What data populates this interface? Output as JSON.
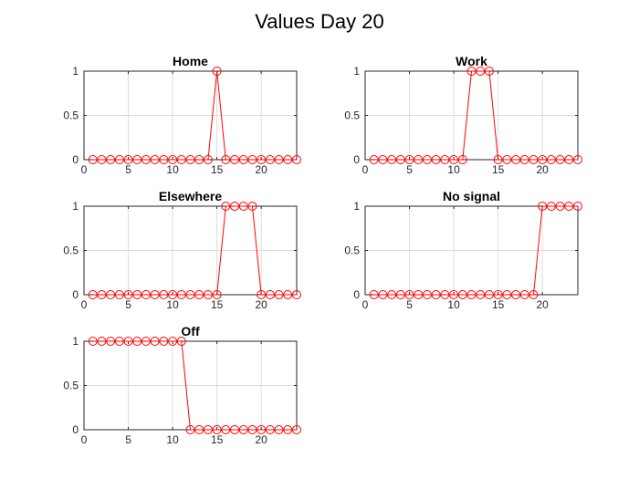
{
  "figure_title": "Values Day 20",
  "chart_data": [
    {
      "type": "line",
      "title": "Home",
      "xlabel": "",
      "ylabel": "",
      "xlim": [
        0,
        24
      ],
      "ylim": [
        0,
        1
      ],
      "xticks": [
        0,
        5,
        10,
        15,
        20
      ],
      "yticks": [
        0,
        0.5,
        1
      ],
      "grid": true,
      "marker": "circle-open",
      "color": "#ff0000",
      "x": [
        1,
        2,
        3,
        4,
        5,
        6,
        7,
        8,
        9,
        10,
        11,
        12,
        13,
        14,
        15,
        16,
        17,
        18,
        19,
        20,
        21,
        22,
        23,
        24
      ],
      "values": [
        0,
        0,
        0,
        0,
        0,
        0,
        0,
        0,
        0,
        0,
        0,
        0,
        0,
        0,
        1,
        0,
        0,
        0,
        0,
        0,
        0,
        0,
        0,
        0
      ]
    },
    {
      "type": "line",
      "title": "Work",
      "xlabel": "",
      "ylabel": "",
      "xlim": [
        0,
        24
      ],
      "ylim": [
        0,
        1
      ],
      "xticks": [
        0,
        5,
        10,
        15,
        20
      ],
      "yticks": [
        0,
        0.5,
        1
      ],
      "grid": true,
      "marker": "circle-open",
      "color": "#ff0000",
      "x": [
        1,
        2,
        3,
        4,
        5,
        6,
        7,
        8,
        9,
        10,
        11,
        12,
        13,
        14,
        15,
        16,
        17,
        18,
        19,
        20,
        21,
        22,
        23,
        24
      ],
      "values": [
        0,
        0,
        0,
        0,
        0,
        0,
        0,
        0,
        0,
        0,
        0,
        1,
        1,
        1,
        0,
        0,
        0,
        0,
        0,
        0,
        0,
        0,
        0,
        0
      ]
    },
    {
      "type": "line",
      "title": "Elsewhere",
      "xlabel": "",
      "ylabel": "",
      "xlim": [
        0,
        24
      ],
      "ylim": [
        0,
        1
      ],
      "xticks": [
        0,
        5,
        10,
        15,
        20
      ],
      "yticks": [
        0,
        0.5,
        1
      ],
      "grid": true,
      "marker": "circle-open",
      "color": "#ff0000",
      "x": [
        1,
        2,
        3,
        4,
        5,
        6,
        7,
        8,
        9,
        10,
        11,
        12,
        13,
        14,
        15,
        16,
        17,
        18,
        19,
        20,
        21,
        22,
        23,
        24
      ],
      "values": [
        0,
        0,
        0,
        0,
        0,
        0,
        0,
        0,
        0,
        0,
        0,
        0,
        0,
        0,
        0,
        1,
        1,
        1,
        1,
        0,
        0,
        0,
        0,
        0
      ]
    },
    {
      "type": "line",
      "title": "No signal",
      "xlabel": "",
      "ylabel": "",
      "xlim": [
        0,
        24
      ],
      "ylim": [
        0,
        1
      ],
      "xticks": [
        0,
        5,
        10,
        15,
        20
      ],
      "yticks": [
        0,
        0.5,
        1
      ],
      "grid": true,
      "marker": "circle-open",
      "color": "#ff0000",
      "x": [
        1,
        2,
        3,
        4,
        5,
        6,
        7,
        8,
        9,
        10,
        11,
        12,
        13,
        14,
        15,
        16,
        17,
        18,
        19,
        20,
        21,
        22,
        23,
        24
      ],
      "values": [
        0,
        0,
        0,
        0,
        0,
        0,
        0,
        0,
        0,
        0,
        0,
        0,
        0,
        0,
        0,
        0,
        0,
        0,
        0,
        1,
        1,
        1,
        1,
        1
      ]
    },
    {
      "type": "line",
      "title": "Off",
      "xlabel": "",
      "ylabel": "",
      "xlim": [
        0,
        24
      ],
      "ylim": [
        0,
        1
      ],
      "xticks": [
        0,
        5,
        10,
        15,
        20
      ],
      "yticks": [
        0,
        0.5,
        1
      ],
      "grid": true,
      "marker": "circle-open",
      "color": "#ff0000",
      "x": [
        1,
        2,
        3,
        4,
        5,
        6,
        7,
        8,
        9,
        10,
        11,
        12,
        13,
        14,
        15,
        16,
        17,
        18,
        19,
        20,
        21,
        22,
        23,
        24
      ],
      "values": [
        1,
        1,
        1,
        1,
        1,
        1,
        1,
        1,
        1,
        1,
        1,
        0,
        0,
        0,
        0,
        0,
        0,
        0,
        0,
        0,
        0,
        0,
        0,
        0
      ]
    }
  ]
}
